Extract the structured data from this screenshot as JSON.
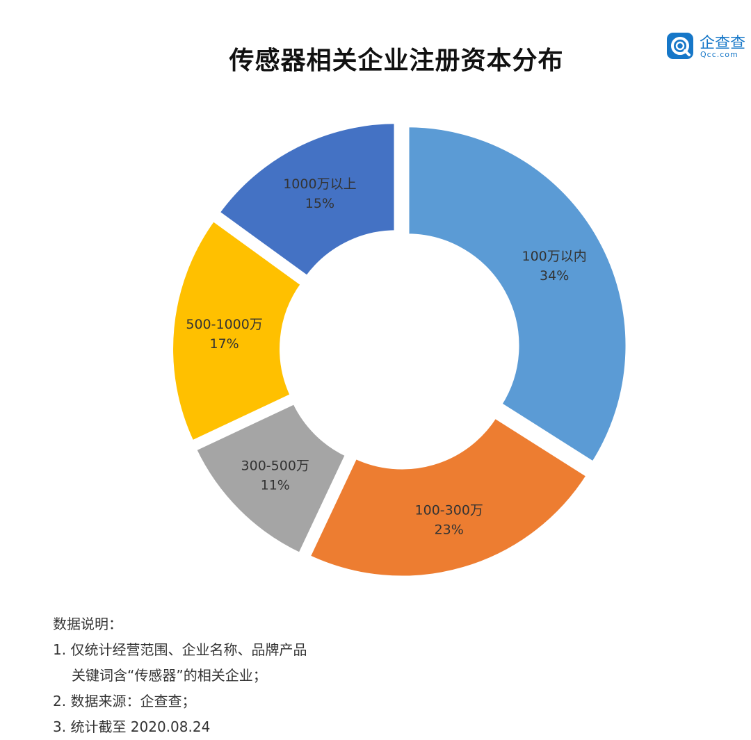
{
  "title": "传感器相关企业注册资本分布",
  "logo": {
    "name": "企查查",
    "domain": "Qcc.com",
    "brand_color": "#1677c8",
    "icon": "qcc-logo-icon"
  },
  "chart_data": {
    "type": "pie",
    "style": "donut",
    "title": "传感器相关企业注册资本分布",
    "slices": [
      {
        "label": "100万以内",
        "value": 34,
        "pct_label": "34%",
        "color": "#5b9bd5"
      },
      {
        "label": "100-300万",
        "value": 23,
        "pct_label": "23%",
        "color": "#ed7d31"
      },
      {
        "label": "300-500万",
        "value": 11,
        "pct_label": "11%",
        "color": "#a5a5a5"
      },
      {
        "label": "500-1000万",
        "value": 17,
        "pct_label": "17%",
        "color": "#ffc000"
      },
      {
        "label": "1000万以上",
        "value": 15,
        "pct_label": "15%",
        "color": "#4472c4"
      }
    ],
    "start_angle": "12 o'clock",
    "direction": "clockwise",
    "legend": "none",
    "data_labels": "inside slices"
  },
  "notes": {
    "heading": "数据说明：",
    "line1": "1. 仅统计经营范围、企业名称、品牌产品",
    "line1b": "关键词含“传感器”的相关企业；",
    "line2": "2. 数据来源：企查查；",
    "line3": "3. 统计截至 2020.08.24"
  }
}
